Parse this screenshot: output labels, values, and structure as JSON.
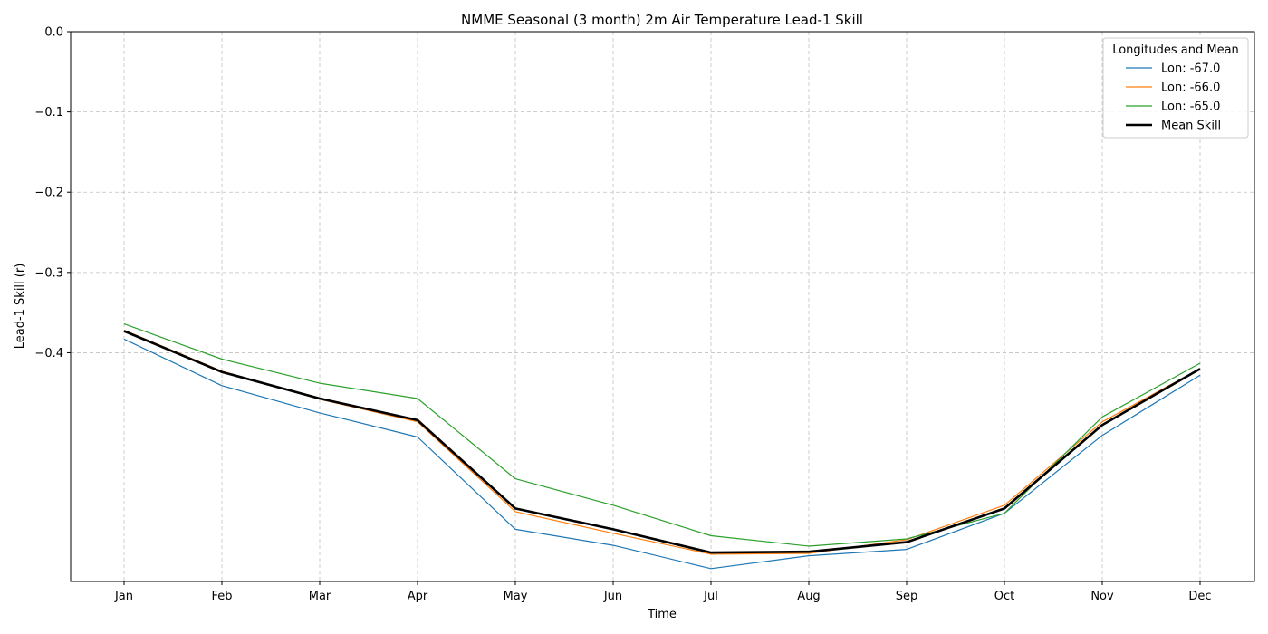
{
  "chart_data": {
    "type": "line",
    "title": "NMME Seasonal (3 month) 2m Air Temperature Lead-1 Skill",
    "xlabel": "Time",
    "ylabel": "Lead-1 Skill (r)",
    "categories": [
      "Jan",
      "Feb",
      "Mar",
      "Apr",
      "May",
      "Jun",
      "Jul",
      "Aug",
      "Sep",
      "Oct",
      "Nov",
      "Dec"
    ],
    "ylim": [
      -0.685,
      0.0
    ],
    "yticks": [
      0.0,
      -0.1,
      -0.2,
      -0.3,
      -0.4
    ],
    "ytick_labels": [
      "0.0",
      "−0.1",
      "−0.2",
      "−0.3",
      "−0.4"
    ],
    "grid": true,
    "legend": {
      "title": "Longitudes and Mean",
      "placement": "top-right"
    },
    "series": [
      {
        "name": "Lon: -67.0",
        "color": "#1f77b4",
        "values": [
          -0.383,
          -0.441,
          -0.475,
          -0.505,
          -0.62,
          -0.64,
          -0.669,
          -0.653,
          -0.645,
          -0.6,
          -0.503,
          -0.428
        ]
      },
      {
        "name": "Lon: -66.0",
        "color": "#ff7f0e",
        "values": [
          -0.372,
          -0.423,
          -0.458,
          -0.486,
          -0.598,
          -0.625,
          -0.651,
          -0.65,
          -0.633,
          -0.59,
          -0.486,
          -0.42
        ]
      },
      {
        "name": "Lon: -65.0",
        "color": "#2ca02c",
        "values": [
          -0.364,
          -0.408,
          -0.438,
          -0.457,
          -0.557,
          -0.59,
          -0.628,
          -0.641,
          -0.632,
          -0.6,
          -0.48,
          -0.413
        ]
      },
      {
        "name": "Mean Skill",
        "color": "#000000",
        "values": [
          -0.373,
          -0.424,
          -0.457,
          -0.484,
          -0.594,
          -0.62,
          -0.649,
          -0.648,
          -0.636,
          -0.594,
          -0.49,
          -0.42
        ]
      }
    ]
  }
}
